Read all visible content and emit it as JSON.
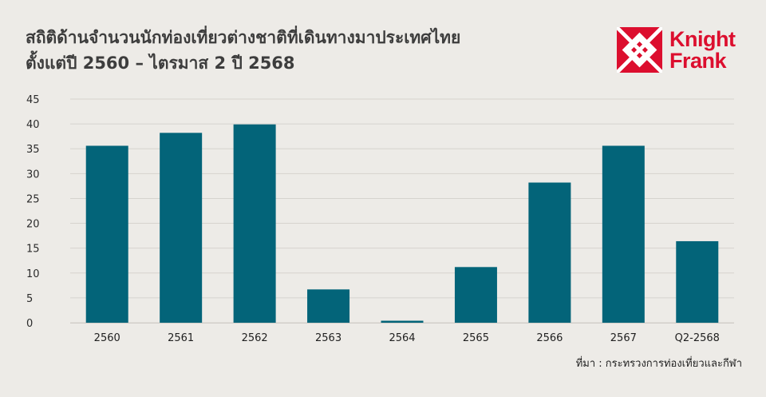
{
  "title_lines": [
    "สถิติด้านจำนวนนักท่องเที่ยวต่างชาติที่เดินทางมาประเทศไทย",
    "ตั้งแต่ปี 2560 – ไตรมาส 2 ปี 2568"
  ],
  "logo": {
    "line1": "Knight",
    "line2": "Frank",
    "color": "#dc0e2e"
  },
  "source": "ที่มา : กระทรวงการท่องเที่ยวและกีฬา",
  "chart_data": {
    "type": "bar",
    "categories": [
      "2560",
      "2561",
      "2562",
      "2563",
      "2564",
      "2565",
      "2566",
      "2567",
      "Q2-2568"
    ],
    "values": [
      35.6,
      38.2,
      39.9,
      6.7,
      0.4,
      11.2,
      28.2,
      35.6,
      16.4
    ],
    "ylim": [
      0,
      45
    ],
    "ticks": [
      "45",
      "40",
      "35",
      "30",
      "25",
      "20",
      "15",
      "10",
      "5",
      "0"
    ],
    "bar_color": "#036479",
    "grid": true,
    "legend": "none"
  }
}
